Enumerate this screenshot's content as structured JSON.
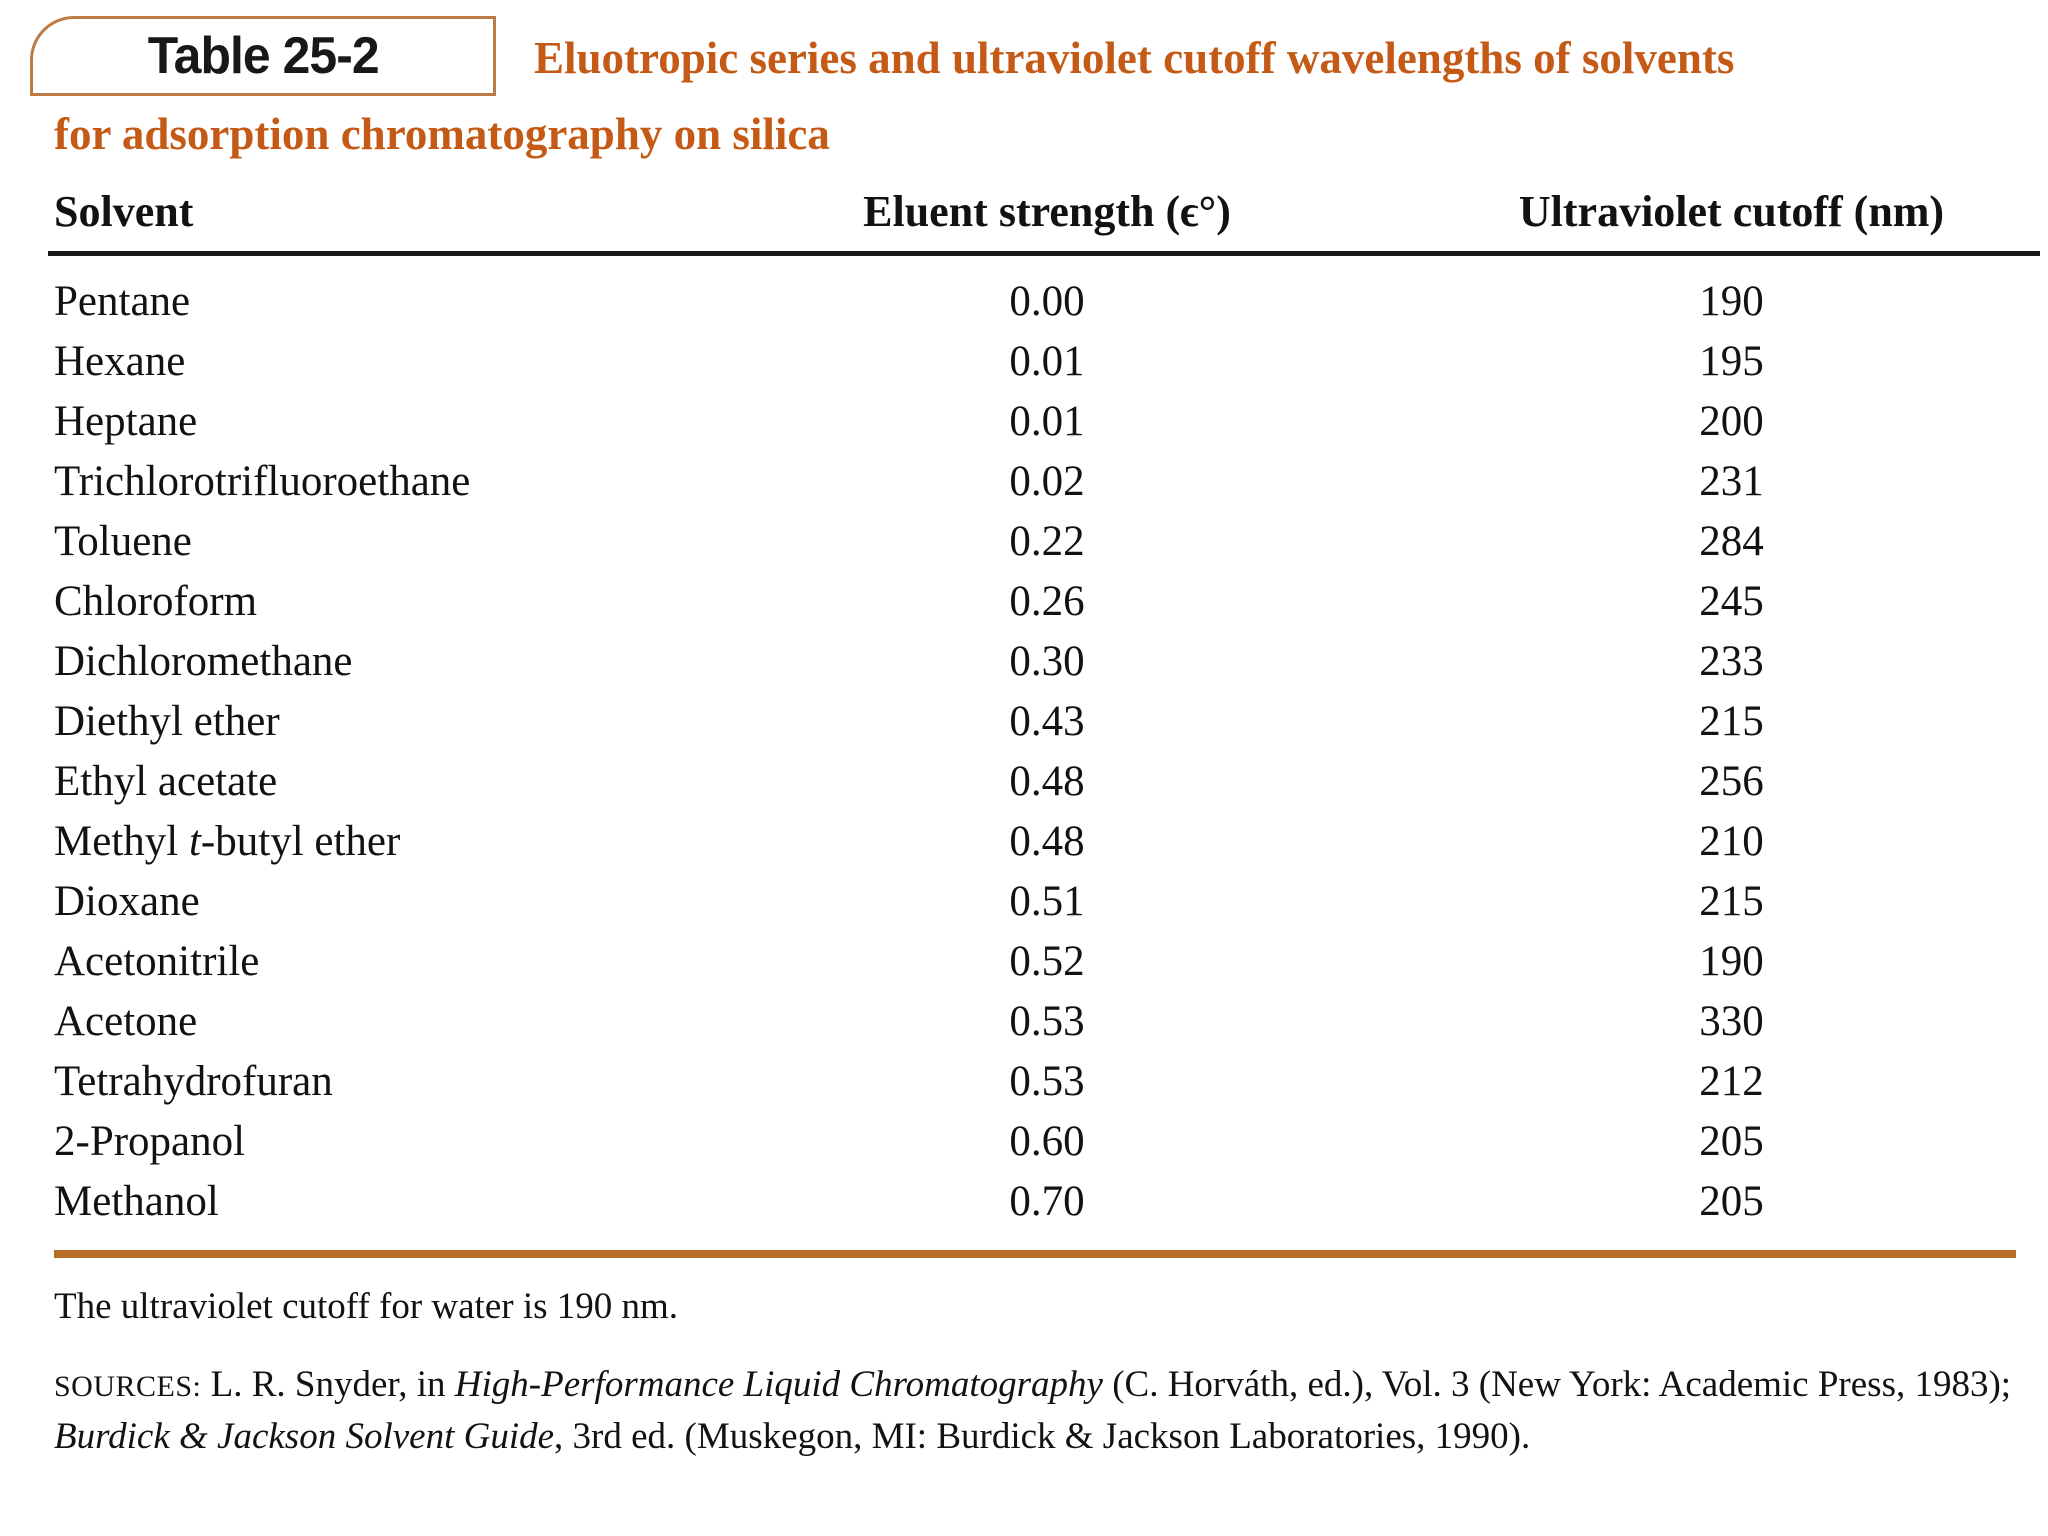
{
  "header": {
    "table_label": "Table 25-2",
    "title_line1": "Eluotropic series and ultraviolet cutoff wavelengths of solvents",
    "title_line2": "for adsorption chromatography on silica"
  },
  "table": {
    "columns": [
      "Solvent",
      "Eluent strength (ϵ°)",
      "Ultraviolet cutoff (nm)"
    ],
    "rows": [
      {
        "solvent": "Pentane",
        "eluent_strength": "0.00",
        "uv_cutoff": "190"
      },
      {
        "solvent": "Hexane",
        "eluent_strength": "0.01",
        "uv_cutoff": "195"
      },
      {
        "solvent": "Heptane",
        "eluent_strength": "0.01",
        "uv_cutoff": "200"
      },
      {
        "solvent": "Trichlorotrifluoroethane",
        "eluent_strength": "0.02",
        "uv_cutoff": "231"
      },
      {
        "solvent": "Toluene",
        "eluent_strength": "0.22",
        "uv_cutoff": "284"
      },
      {
        "solvent": "Chloroform",
        "eluent_strength": "0.26",
        "uv_cutoff": "245"
      },
      {
        "solvent": "Dichloromethane",
        "eluent_strength": "0.30",
        "uv_cutoff": "233"
      },
      {
        "solvent": "Diethyl ether",
        "eluent_strength": "0.43",
        "uv_cutoff": "215"
      },
      {
        "solvent": "Ethyl acetate",
        "eluent_strength": "0.48",
        "uv_cutoff": "256"
      },
      {
        "solvent": "Methyl *t*-butyl ether",
        "eluent_strength": "0.48",
        "uv_cutoff": "210"
      },
      {
        "solvent": "Dioxane",
        "eluent_strength": "0.51",
        "uv_cutoff": "215"
      },
      {
        "solvent": "Acetonitrile",
        "eluent_strength": "0.52",
        "uv_cutoff": "190"
      },
      {
        "solvent": "Acetone",
        "eluent_strength": "0.53",
        "uv_cutoff": "330"
      },
      {
        "solvent": "Tetrahydrofuran",
        "eluent_strength": "0.53",
        "uv_cutoff": "212"
      },
      {
        "solvent": "2-Propanol",
        "eluent_strength": "0.60",
        "uv_cutoff": "205"
      },
      {
        "solvent": "Methanol",
        "eluent_strength": "0.70",
        "uv_cutoff": "205"
      }
    ]
  },
  "footnotes": {
    "water_note": "The ultraviolet cutoff for water is 190 nm.",
    "sources_label": "SOURCES:",
    "sources_text": "L. R. Snyder, in *High-Performance Liquid Chromatography* (C. Horváth, ed.), Vol. 3 (New York: Academic Press, 1983); *Burdick & Jackson Solvent Guide*, 3rd ed. (Muskegon, MI: Burdick & Jackson Laboratories, 1990)."
  },
  "colors": {
    "title_orange": "#c45a16",
    "badge_border": "#bd7b45",
    "bottom_rule_orange": "#b76c28",
    "text_black": "#121212"
  }
}
